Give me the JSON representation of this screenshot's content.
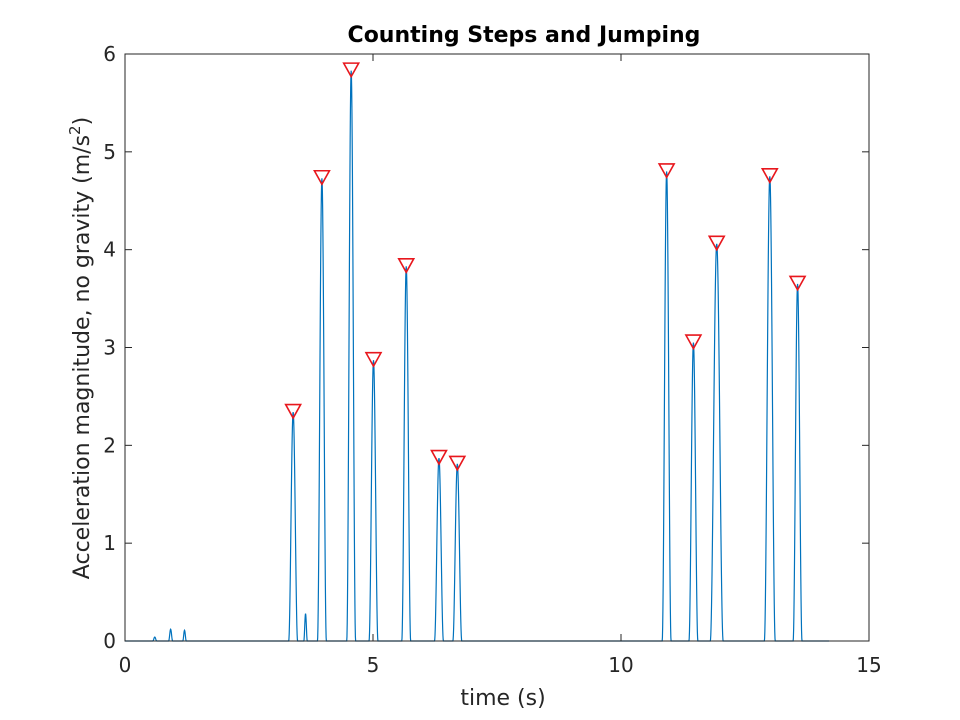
{
  "chart_data": {
    "type": "line",
    "title": "Counting Steps and Jumping",
    "xlabel": "time (s)",
    "ylabel": "Acceleration magnitude, no gravity (m/s",
    "ylabel_superscript": "2",
    "ylabel_suffix": ")",
    "xlim": [
      0,
      15
    ],
    "ylim": [
      0,
      6
    ],
    "xticks": [
      0,
      5,
      10,
      15
    ],
    "yticks": [
      0,
      1,
      2,
      3,
      4,
      5,
      6
    ],
    "grid": false,
    "line_color": "#0072BD",
    "marker_color": "#E8171D",
    "series": [
      {
        "type": "line",
        "pulses": [
          {
            "t": 0.6,
            "h": 0.04,
            "w": 0.04
          },
          {
            "t": 0.92,
            "h": 0.12,
            "w": 0.04
          },
          {
            "t": 1.2,
            "h": 0.11,
            "w": 0.035
          },
          {
            "t": 3.39,
            "h": 2.34,
            "w": 0.09
          },
          {
            "t": 3.64,
            "h": 0.28,
            "w": 0.035
          },
          {
            "t": 3.97,
            "h": 4.73,
            "w": 0.09
          },
          {
            "t": 4.56,
            "h": 5.83,
            "w": 0.09
          },
          {
            "t": 5.01,
            "h": 2.87,
            "w": 0.09
          },
          {
            "t": 5.67,
            "h": 3.83,
            "w": 0.09
          },
          {
            "t": 6.33,
            "h": 1.87,
            "w": 0.09
          },
          {
            "t": 6.7,
            "h": 1.81,
            "w": 0.09
          },
          {
            "t": 10.92,
            "h": 4.8,
            "w": 0.09
          },
          {
            "t": 11.46,
            "h": 3.05,
            "w": 0.09
          },
          {
            "t": 11.93,
            "h": 4.06,
            "w": 0.13
          },
          {
            "t": 13.0,
            "h": 4.75,
            "w": 0.11
          },
          {
            "t": 13.56,
            "h": 3.65,
            "w": 0.09
          }
        ]
      },
      {
        "type": "peak-markers",
        "marker": "downward-triangle",
        "x": [
          3.39,
          3.97,
          4.56,
          5.01,
          5.67,
          6.33,
          6.7,
          10.92,
          11.46,
          11.93,
          13.0,
          13.56
        ],
        "y": [
          2.34,
          4.73,
          5.83,
          2.87,
          3.83,
          1.87,
          1.81,
          4.8,
          3.05,
          4.06,
          4.75,
          3.65
        ]
      }
    ]
  }
}
